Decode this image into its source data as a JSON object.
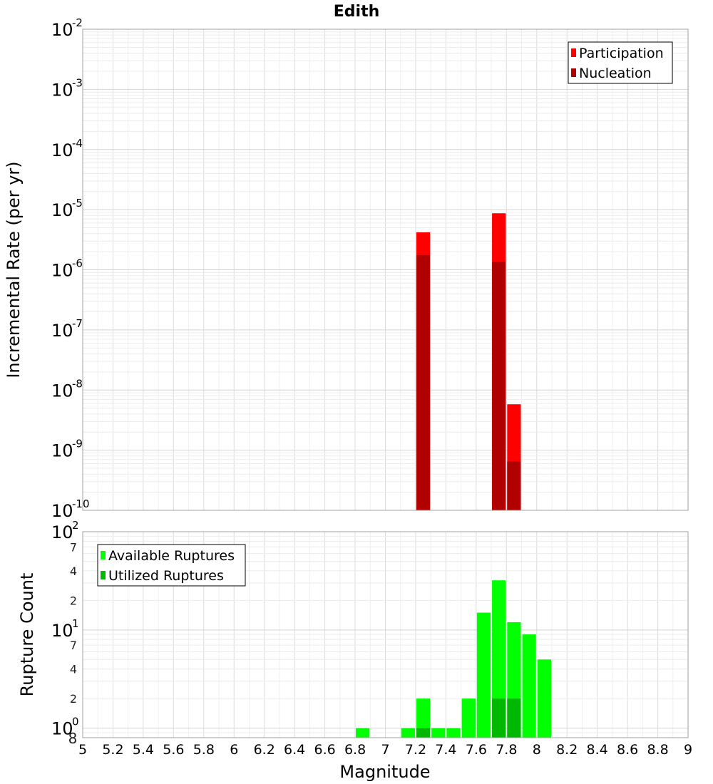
{
  "chart_data": {
    "title": "Edith",
    "xlabel": "Magnitude",
    "xlim": [
      5,
      9
    ],
    "x_ticks": [
      "5",
      "5.2",
      "5.4",
      "5.6",
      "5.8",
      "6",
      "6.2",
      "6.4",
      "6.6",
      "6.8",
      "7",
      "7.2",
      "7.4",
      "7.6",
      "7.8",
      "8",
      "8.2",
      "8.4",
      "8.6",
      "8.8",
      "9"
    ],
    "bin_width": 0.1,
    "panels": [
      {
        "type": "bar",
        "ylabel": "Incremental Rate (per yr)",
        "y_scale": "log",
        "ylim": [
          1e-10,
          0.01
        ],
        "y_major_ticks": [
          {
            "base": "10",
            "exp": "-10"
          },
          {
            "base": "10",
            "exp": "-9"
          },
          {
            "base": "10",
            "exp": "-8"
          },
          {
            "base": "10",
            "exp": "-7"
          },
          {
            "base": "10",
            "exp": "-6"
          },
          {
            "base": "10",
            "exp": "-5"
          },
          {
            "base": "10",
            "exp": "-4"
          },
          {
            "base": "10",
            "exp": "-3"
          },
          {
            "base": "10",
            "exp": "-2"
          }
        ],
        "grid": true,
        "legend_position": "top-right",
        "series": [
          {
            "name": "Participation",
            "color": "#ff0000",
            "points": [
              {
                "x": 7.25,
                "y": 4.2e-06
              },
              {
                "x": 7.75,
                "y": 8.7e-06
              },
              {
                "x": 7.85,
                "y": 5.8e-09
              }
            ]
          },
          {
            "name": "Nucleation",
            "color": "#b00000",
            "points": [
              {
                "x": 7.25,
                "y": 1.75e-06
              },
              {
                "x": 7.75,
                "y": 1.35e-06
              },
              {
                "x": 7.85,
                "y": 6.5e-10
              }
            ]
          }
        ]
      },
      {
        "type": "bar",
        "ylabel": "Rupture Count",
        "y_scale": "log",
        "ylim": [
          0.8,
          100
        ],
        "y_major_ticks": [
          {
            "base": "10",
            "exp": "0"
          },
          {
            "base": "10",
            "exp": "1"
          },
          {
            "base": "10",
            "exp": "2"
          }
        ],
        "y_minor_ticks": [
          "2",
          "4",
          "7",
          "2",
          "4",
          "7"
        ],
        "y_minor_values": [
          2,
          4,
          7,
          20,
          40,
          70
        ],
        "y_bottom_label": "8",
        "grid": true,
        "legend_position": "top-left",
        "series": [
          {
            "name": "Available Ruptures",
            "color": "#00ff00",
            "points": [
              {
                "x": 6.85,
                "y": 1
              },
              {
                "x": 7.15,
                "y": 1
              },
              {
                "x": 7.25,
                "y": 2
              },
              {
                "x": 7.35,
                "y": 1
              },
              {
                "x": 7.45,
                "y": 1
              },
              {
                "x": 7.55,
                "y": 2
              },
              {
                "x": 7.65,
                "y": 15
              },
              {
                "x": 7.75,
                "y": 32
              },
              {
                "x": 7.85,
                "y": 12
              },
              {
                "x": 7.95,
                "y": 9
              },
              {
                "x": 8.05,
                "y": 5
              }
            ]
          },
          {
            "name": "Utilized Ruptures",
            "color": "#00b800",
            "points": [
              {
                "x": 7.25,
                "y": 1
              },
              {
                "x": 7.75,
                "y": 2
              },
              {
                "x": 7.85,
                "y": 2
              }
            ]
          }
        ]
      }
    ]
  }
}
